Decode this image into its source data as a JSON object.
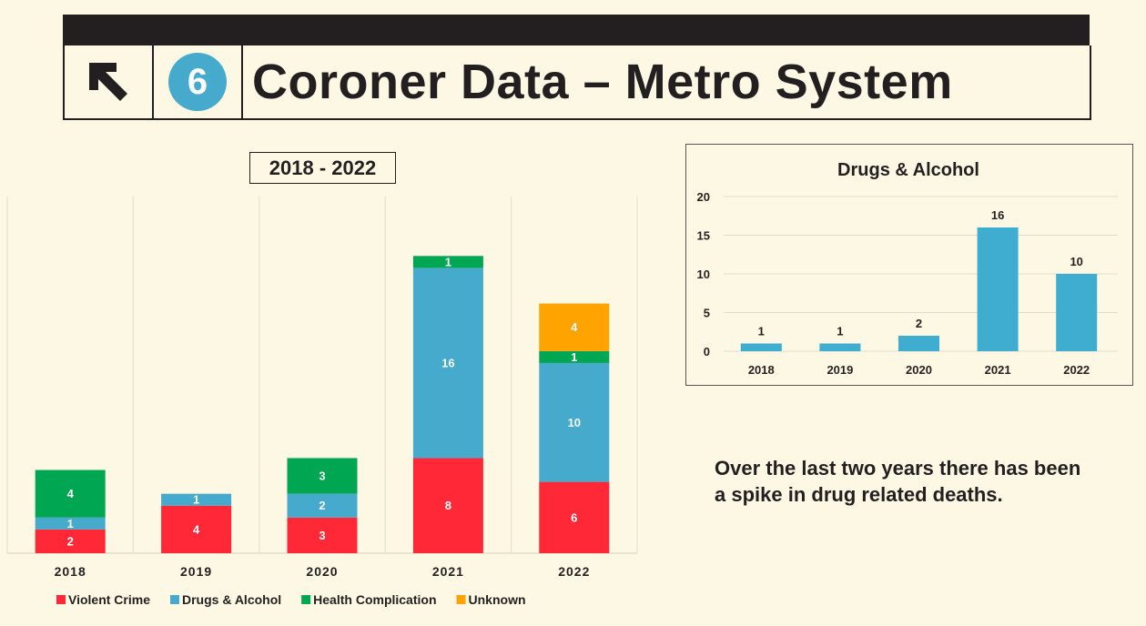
{
  "header": {
    "icon": "arrow-up-left-icon",
    "badge": "6",
    "title": "Coroner Data – Metro System"
  },
  "range_label": "2018 - 2022",
  "note": "Over the last two years there has been a spike in drug related deaths.",
  "chart_data": [
    {
      "type": "bar",
      "stacked": true,
      "categories": [
        "2018",
        "2019",
        "2020",
        "2021",
        "2022"
      ],
      "series": [
        {
          "name": "Violent Crime",
          "color": "#ff2837",
          "values": [
            2,
            4,
            3,
            8,
            6
          ]
        },
        {
          "name": "Drugs & Alcohol",
          "color": "#45aacb",
          "values": [
            1,
            1,
            2,
            16,
            10
          ]
        },
        {
          "name": "Health Complication",
          "color": "#00a651",
          "values": [
            4,
            0,
            3,
            1,
            1
          ]
        },
        {
          "name": "Unknown",
          "color": "#ffa300",
          "values": [
            0,
            0,
            0,
            0,
            4
          ]
        }
      ],
      "ylim": [
        0,
        30
      ],
      "legend": "bottom",
      "grid": "vertical separators"
    },
    {
      "type": "bar",
      "title": "Drugs & Alcohol",
      "categories": [
        "2018",
        "2019",
        "2020",
        "2021",
        "2022"
      ],
      "values": [
        1,
        1,
        2,
        16,
        10
      ],
      "color": "#3eadd0",
      "ylim": [
        0,
        20
      ],
      "yticks": [
        0,
        5,
        10,
        15,
        20
      ],
      "grid": true
    }
  ]
}
